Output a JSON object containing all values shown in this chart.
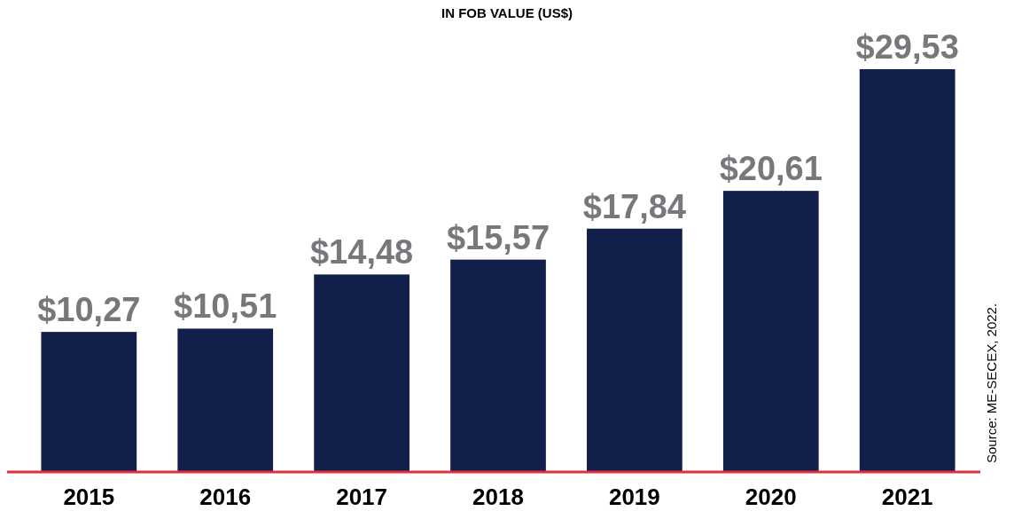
{
  "chart_data": {
    "type": "bar",
    "title": "IN FOB VALUE (US$)",
    "categories": [
      "2015",
      "2016",
      "2017",
      "2018",
      "2019",
      "2020",
      "2021"
    ],
    "values": [
      10.27,
      10.51,
      14.48,
      15.57,
      17.84,
      20.61,
      29.53
    ],
    "value_labels": [
      "$10,27",
      "$10,51",
      "$14,48",
      "$15,57",
      "$17,84",
      "$20,61",
      "$29,53"
    ],
    "color": "#131f4b",
    "annotations": [
      "Source: ME-SECEX, 2022."
    ]
  }
}
